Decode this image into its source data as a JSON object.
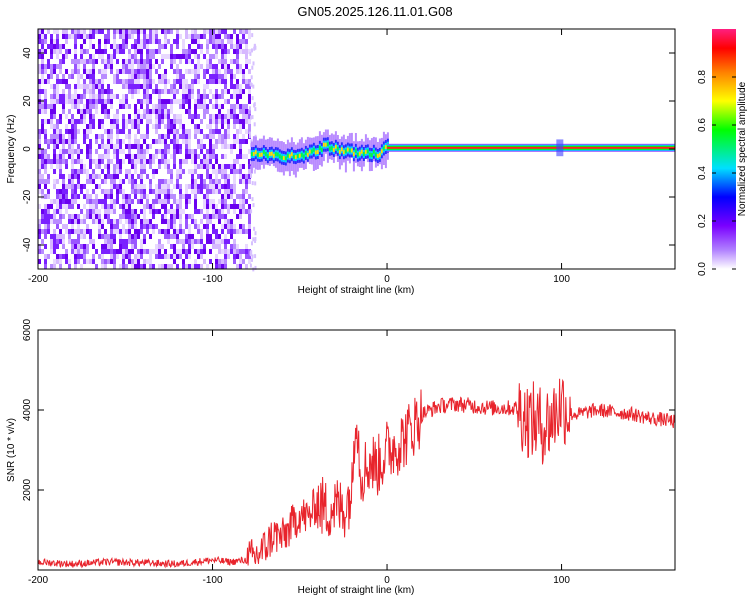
{
  "title": "GN05.2025.126.11.01.G08",
  "chart_data": [
    {
      "type": "heatmap",
      "xlabel": "Height of straight line (km)",
      "ylabel": "Frequency (Hz)",
      "xlim": [
        -200,
        165
      ],
      "ylim": [
        -50,
        50
      ],
      "x_ticks": [
        -200,
        -100,
        0,
        100
      ],
      "y_ticks": [
        40,
        20,
        0,
        -20,
        -40
      ],
      "colorbar": {
        "label": "Normalized spectral amplitude",
        "range": [
          0,
          1
        ],
        "ticks": [
          "0.0",
          "0.2",
          "0.4",
          "0.6",
          "0.8"
        ],
        "colormap": [
          "#ffffff",
          "#8000ff",
          "#0000ff",
          "#00ffff",
          "#00ff00",
          "#ffff00",
          "#ff8000",
          "#ff0000",
          "#ff0080"
        ]
      },
      "noise_region": {
        "x": [
          -200,
          -78
        ],
        "amplitude": 0.1
      },
      "signal_trace": [
        {
          "x": -78,
          "freq": -1.5
        },
        {
          "x": -60,
          "freq": -3.5
        },
        {
          "x": -45,
          "freq": -2
        },
        {
          "x": -35,
          "freq": 1.5
        },
        {
          "x": -25,
          "freq": -1
        },
        {
          "x": -15,
          "freq": -1.5
        },
        {
          "x": -5,
          "freq": -2
        },
        {
          "x": 0,
          "freq": 0.5
        },
        {
          "x": 100,
          "freq": 0.5
        },
        {
          "x": 165,
          "freq": 0.5
        }
      ]
    },
    {
      "type": "line",
      "xlabel": "Height of straight line (km)",
      "ylabel": "SNR (10 * v/v)",
      "xlim": [
        -200,
        165
      ],
      "ylim": [
        0,
        6000
      ],
      "x_ticks": [
        -200,
        -100,
        0,
        100
      ],
      "y_ticks": [
        2000,
        4000,
        6000
      ],
      "series": [
        {
          "color": "#e8242c",
          "x": [
            -200,
            -180,
            -160,
            -140,
            -120,
            -100,
            -90,
            -80,
            -75,
            -70,
            -65,
            -60,
            -55,
            -50,
            -45,
            -40,
            -35,
            -30,
            -25,
            -20,
            -18,
            -15,
            -10,
            -5,
            0,
            5,
            10,
            15,
            20,
            25,
            30,
            40,
            50,
            60,
            70,
            75,
            80,
            85,
            90,
            95,
            100,
            105,
            110,
            120,
            130,
            140,
            150,
            160,
            165
          ],
          "y": [
            200,
            150,
            200,
            180,
            150,
            250,
            200,
            250,
            350,
            550,
            900,
            800,
            1100,
            1400,
            1300,
            1700,
            1500,
            1600,
            1500,
            2000,
            4200,
            2400,
            2700,
            2600,
            3000,
            3100,
            3300,
            3600,
            3900,
            4000,
            4100,
            4150,
            4100,
            4050,
            4050,
            4050,
            3800,
            3700,
            3600,
            3800,
            4200,
            3900,
            3900,
            4000,
            3950,
            3900,
            3800,
            3750,
            3700
          ]
        }
      ]
    }
  ]
}
